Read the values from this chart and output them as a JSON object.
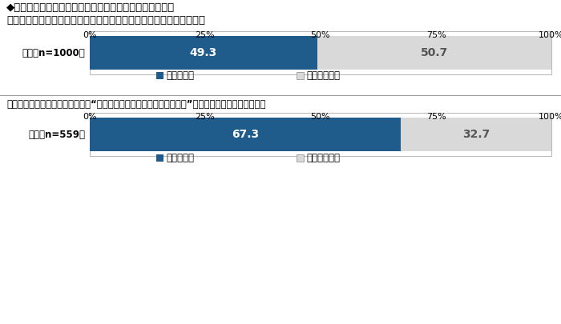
{
  "title_main": "◆アルコール検知器に関する認知状況　［単一回答形式］",
  "section1_subtitle": "《精度の悪い検知器ではアルコールを誤検知する可能性があること》",
  "section2_note": "＊職場でアルコール検知器による“社用車運転者のアルコールチェック”が実施されている人がベース",
  "chart1_label": "全体《n=1000》",
  "chart1_known": 49.3,
  "chart1_unknown": 50.7,
  "chart2_label": "全体［n=559］",
  "chart2_known": 67.3,
  "chart2_unknown": 32.7,
  "color_known": "#1f5c8b",
  "color_unknown": "#d9d9d9",
  "legend_known": "知っていた",
  "legend_unknown": "知らなかった",
  "background_color": "#ffffff"
}
